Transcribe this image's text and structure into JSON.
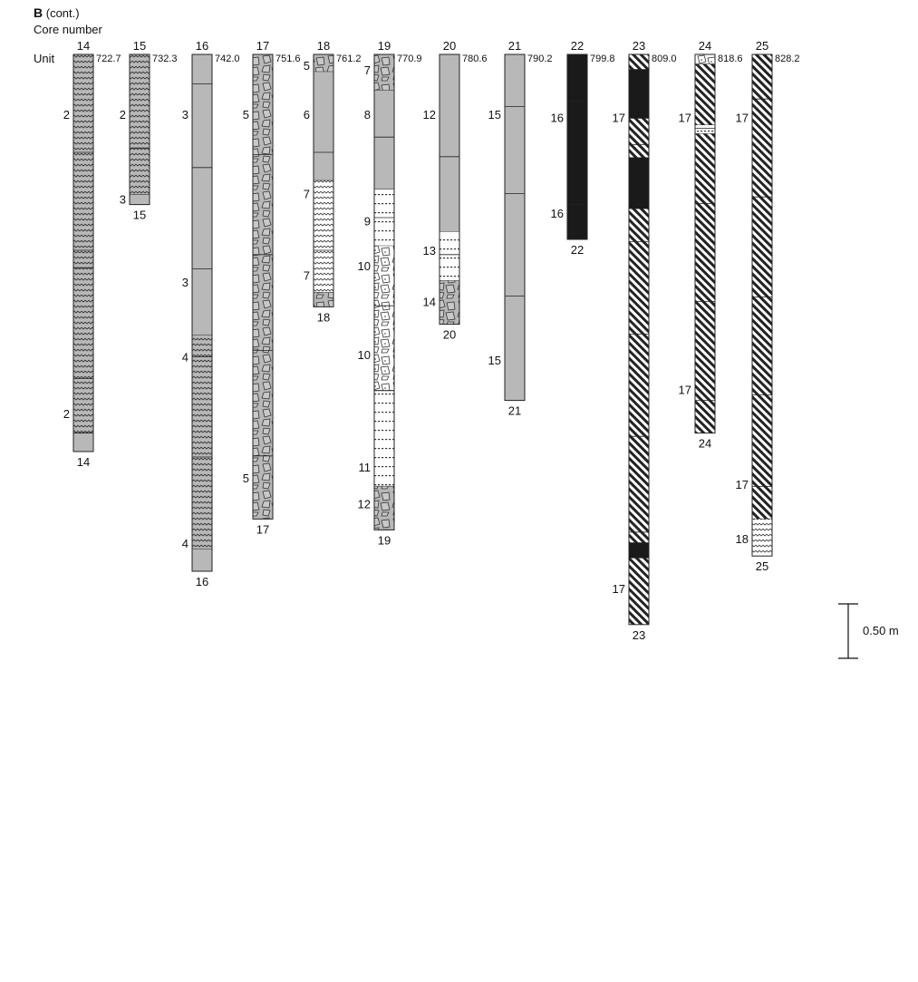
{
  "header": {
    "section": "B",
    "section_note": "(cont.)",
    "core_number_label": "Core number",
    "unit_label": "Unit"
  },
  "scale_bar": {
    "label": "0.50 m",
    "length_m": 0.5
  },
  "chart_data": {
    "type": "core-log",
    "depth_unit": "m",
    "lithology_patterns": [
      "wavy",
      "grey",
      "breccia",
      "wavy-light",
      "dots",
      "breccia-light",
      "black",
      "hatch"
    ],
    "cores": [
      {
        "number": "14",
        "top": "722.7",
        "length_m": 3.65,
        "segments": [
          {
            "unit": "2",
            "pattern": "wavy",
            "length_m": 3.48
          },
          {
            "unit": "",
            "pattern": "grey",
            "length_m": 0.17
          }
        ],
        "unit_labels": [
          {
            "unit": "2",
            "at_m": 0.55
          },
          {
            "unit": "2",
            "at_m": 3.3
          }
        ],
        "section_breaks_m": [
          0.9,
          1.8,
          1.96,
          2.98,
          3.48
        ]
      },
      {
        "number": "15",
        "top": "732.3",
        "length_m": 1.38,
        "segments": [
          {
            "unit": "2",
            "pattern": "wavy",
            "length_m": 1.29
          },
          {
            "unit": "3",
            "pattern": "grey",
            "length_m": 0.09
          }
        ],
        "unit_labels": [
          {
            "unit": "2",
            "at_m": 0.55
          },
          {
            "unit": "3",
            "at_m": 1.33
          }
        ],
        "section_breaks_m": [
          0.86
        ]
      },
      {
        "number": "16",
        "top": "742.0",
        "length_m": 4.75,
        "segments": [
          {
            "unit": "3",
            "pattern": "grey",
            "length_m": 2.58
          },
          {
            "unit": "4",
            "pattern": "wavy",
            "length_m": 1.97
          },
          {
            "unit": "",
            "pattern": "grey",
            "length_m": 0.2
          }
        ],
        "unit_labels": [
          {
            "unit": "3",
            "at_m": 0.55
          },
          {
            "unit": "3",
            "at_m": 2.09
          },
          {
            "unit": "4",
            "at_m": 2.78
          },
          {
            "unit": "4",
            "at_m": 4.49
          }
        ],
        "section_breaks_m": [
          0.27,
          1.04,
          1.97,
          2.78,
          3.7
        ]
      },
      {
        "number": "17",
        "top": "751.6",
        "length_m": 4.27,
        "segments": [
          {
            "unit": "5",
            "pattern": "breccia",
            "length_m": 4.27
          }
        ],
        "unit_labels": [
          {
            "unit": "5",
            "at_m": 0.55
          },
          {
            "unit": "5",
            "at_m": 3.89
          }
        ],
        "section_breaks_m": [
          0.92,
          1.84,
          2.72,
          3.69
        ]
      },
      {
        "number": "18",
        "top": "761.2",
        "length_m": 2.32,
        "segments": [
          {
            "unit": "5",
            "pattern": "breccia",
            "length_m": 0.16
          },
          {
            "unit": "6",
            "pattern": "grey",
            "length_m": 1.0
          },
          {
            "unit": "7",
            "pattern": "wavy-light",
            "length_m": 1.03
          },
          {
            "unit": "",
            "pattern": "breccia",
            "length_m": 0.13
          }
        ],
        "unit_labels": [
          {
            "unit": "5",
            "at_m": 0.1
          },
          {
            "unit": "6",
            "at_m": 0.55
          },
          {
            "unit": "7",
            "at_m": 1.28
          },
          {
            "unit": "7",
            "at_m": 2.03
          }
        ],
        "section_breaks_m": [
          0.9,
          1.8
        ]
      },
      {
        "number": "19",
        "top": "770.9",
        "length_m": 4.37,
        "segments": [
          {
            "unit": "7",
            "pattern": "breccia",
            "length_m": 0.33
          },
          {
            "unit": "8",
            "pattern": "grey",
            "length_m": 0.91
          },
          {
            "unit": "9",
            "pattern": "dots",
            "length_m": 0.52
          },
          {
            "unit": "10",
            "pattern": "breccia-light",
            "length_m": 1.33
          },
          {
            "unit": "11",
            "pattern": "dots",
            "length_m": 0.88
          },
          {
            "unit": "12",
            "pattern": "breccia",
            "length_m": 0.4
          }
        ],
        "unit_labels": [
          {
            "unit": "7",
            "at_m": 0.14
          },
          {
            "unit": "8",
            "at_m": 0.55
          },
          {
            "unit": "9",
            "at_m": 1.53
          },
          {
            "unit": "10",
            "at_m": 1.94
          },
          {
            "unit": "10",
            "at_m": 2.76
          },
          {
            "unit": "11",
            "at_m": 3.79
          },
          {
            "unit": "12",
            "at_m": 4.13
          }
        ],
        "section_breaks_m": [
          0.76,
          1.5,
          2.31,
          3.09
        ]
      },
      {
        "number": "20",
        "top": "780.6",
        "length_m": 2.48,
        "segments": [
          {
            "unit": "12",
            "pattern": "grey",
            "length_m": 1.63
          },
          {
            "unit": "13",
            "pattern": "dots",
            "length_m": 0.45
          },
          {
            "unit": "14",
            "pattern": "breccia",
            "length_m": 0.4
          }
        ],
        "unit_labels": [
          {
            "unit": "12",
            "at_m": 0.55
          },
          {
            "unit": "13",
            "at_m": 1.8
          },
          {
            "unit": "14",
            "at_m": 2.27
          }
        ],
        "section_breaks_m": [
          0.94,
          1.84
        ]
      },
      {
        "number": "21",
        "top": "790.2",
        "length_m": 3.18,
        "segments": [
          {
            "unit": "15",
            "pattern": "grey",
            "length_m": 3.18
          }
        ],
        "unit_labels": [
          {
            "unit": "15",
            "at_m": 0.55
          },
          {
            "unit": "15",
            "at_m": 2.81
          }
        ],
        "section_breaks_m": [
          0.48,
          1.28,
          2.22
        ]
      },
      {
        "number": "22",
        "top": "799.8",
        "length_m": 1.7,
        "segments": [
          {
            "unit": "16",
            "pattern": "black",
            "length_m": 1.7
          }
        ],
        "unit_labels": [
          {
            "unit": "16",
            "at_m": 0.58
          },
          {
            "unit": "16",
            "at_m": 1.46
          }
        ],
        "section_breaks_m": [
          0.43,
          1.38
        ]
      },
      {
        "number": "23",
        "top": "809.0",
        "length_m": 5.24,
        "segments": [
          {
            "unit": "17",
            "pattern": "hatch",
            "length_m": 0.14
          },
          {
            "unit": "",
            "pattern": "black",
            "length_m": 0.45
          },
          {
            "unit": "",
            "pattern": "hatch",
            "length_m": 0.36
          },
          {
            "unit": "",
            "pattern": "black",
            "length_m": 0.47
          },
          {
            "unit": "",
            "pattern": "hatch",
            "length_m": 3.07
          },
          {
            "unit": "",
            "pattern": "black",
            "length_m": 0.14
          },
          {
            "unit": "",
            "pattern": "hatch",
            "length_m": 0.61
          }
        ],
        "unit_labels": [
          {
            "unit": "17",
            "at_m": 0.58
          },
          {
            "unit": "17",
            "at_m": 4.91
          }
        ],
        "section_breaks_m": [
          0.83,
          1.72,
          2.57,
          3.51,
          4.39
        ]
      },
      {
        "number": "24",
        "top": "818.6",
        "length_m": 3.48,
        "segments": [
          {
            "unit": "",
            "pattern": "breccia-light",
            "length_m": 0.09
          },
          {
            "unit": "17",
            "pattern": "hatch",
            "length_m": 0.56
          },
          {
            "unit": "",
            "pattern": "dots",
            "length_m": 0.08
          },
          {
            "unit": "",
            "pattern": "hatch",
            "length_m": 2.75
          }
        ],
        "unit_labels": [
          {
            "unit": "17",
            "at_m": 0.58
          },
          {
            "unit": "17",
            "at_m": 3.08
          }
        ],
        "section_breaks_m": [
          0.68,
          1.37,
          2.27,
          3.18
        ]
      },
      {
        "number": "25",
        "top": "828.2",
        "length_m": 4.61,
        "segments": [
          {
            "unit": "17",
            "pattern": "hatch",
            "length_m": 4.27
          },
          {
            "unit": "18",
            "pattern": "wavy-light",
            "length_m": 0.34
          }
        ],
        "unit_labels": [
          {
            "unit": "17",
            "at_m": 0.58
          },
          {
            "unit": "17",
            "at_m": 3.95
          },
          {
            "unit": "18",
            "at_m": 4.45
          }
        ],
        "section_breaks_m": [
          0.41,
          1.31,
          2.23,
          3.13,
          3.97
        ]
      }
    ]
  }
}
